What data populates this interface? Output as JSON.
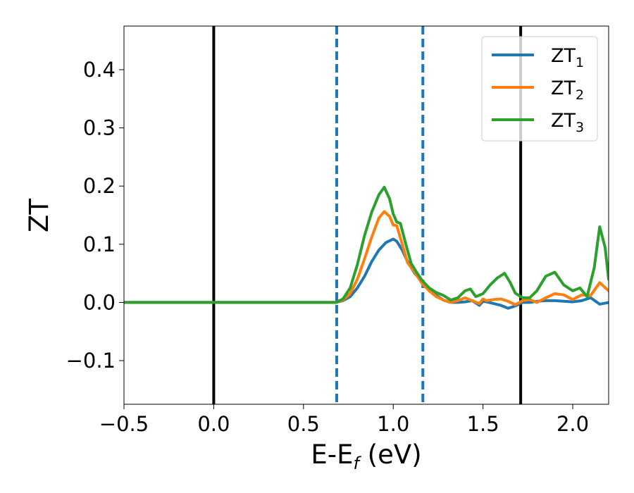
{
  "chart_data": {
    "type": "line",
    "xlabel_main": "E-E",
    "xlabel_sub": "f",
    "xlabel_unit": " (eV)",
    "ylabel": "ZT",
    "xlim": [
      -0.5,
      2.2
    ],
    "ylim": [
      -0.175,
      0.475
    ],
    "xticks": [
      -0.5,
      0.0,
      0.5,
      1.0,
      1.5,
      2.0
    ],
    "xtick_labels": [
      "−0.5",
      "0.0",
      "0.5",
      "1.0",
      "1.5",
      "2.0"
    ],
    "yticks": [
      -0.1,
      0.0,
      0.1,
      0.2,
      0.3,
      0.4
    ],
    "ytick_labels": [
      "−0.1",
      "0.0",
      "0.1",
      "0.2",
      "0.3",
      "0.4"
    ],
    "grid": false,
    "legend_position": "top-right",
    "vlines_solid": [
      0.0,
      1.71
    ],
    "vlines_dashed": [
      0.685,
      1.165
    ],
    "series": [
      {
        "name": "ZT",
        "subscript": "1",
        "color": "#1f77b4",
        "x": [
          -0.5,
          0.0,
          0.5,
          0.68,
          0.72,
          0.76,
          0.8,
          0.84,
          0.88,
          0.92,
          0.96,
          1.0,
          1.02,
          1.05,
          1.08,
          1.12,
          1.16,
          1.2,
          1.24,
          1.28,
          1.32,
          1.36,
          1.4,
          1.44,
          1.48,
          1.5,
          1.52,
          1.56,
          1.6,
          1.64,
          1.68,
          1.72,
          1.76,
          1.8,
          1.85,
          1.9,
          1.95,
          2.0,
          2.05,
          2.1,
          2.15,
          2.2
        ],
        "y": [
          0.0,
          0.0,
          0.0,
          0.0,
          0.003,
          0.01,
          0.025,
          0.045,
          0.07,
          0.09,
          0.103,
          0.109,
          0.105,
          0.09,
          0.07,
          0.05,
          0.036,
          0.024,
          0.012,
          0.004,
          0.0,
          0.0,
          0.001,
          0.003,
          -0.005,
          0.002,
          0.001,
          -0.002,
          -0.005,
          -0.01,
          -0.006,
          0.0,
          0.0,
          0.002,
          0.003,
          0.003,
          0.002,
          0.001,
          0.003,
          0.008,
          -0.003,
          0.0
        ]
      },
      {
        "name": "ZT",
        "subscript": "2",
        "color": "#ff7f0e",
        "x": [
          -0.5,
          0.0,
          0.5,
          0.68,
          0.72,
          0.76,
          0.8,
          0.84,
          0.88,
          0.92,
          0.95,
          0.98,
          1.0,
          1.02,
          1.05,
          1.08,
          1.12,
          1.16,
          1.2,
          1.24,
          1.28,
          1.32,
          1.36,
          1.4,
          1.44,
          1.48,
          1.5,
          1.52,
          1.56,
          1.6,
          1.64,
          1.68,
          1.72,
          1.76,
          1.8,
          1.85,
          1.9,
          1.95,
          2.0,
          2.05,
          2.1,
          2.15,
          2.2
        ],
        "y": [
          0.0,
          0.0,
          0.0,
          0.0,
          0.004,
          0.015,
          0.04,
          0.075,
          0.112,
          0.145,
          0.156,
          0.148,
          0.133,
          0.132,
          0.1,
          0.068,
          0.052,
          0.033,
          0.02,
          0.01,
          0.004,
          0.0,
          0.003,
          0.008,
          0.003,
          -0.002,
          0.006,
          0.003,
          0.005,
          0.006,
          0.002,
          -0.004,
          0.003,
          0.005,
          0.0,
          0.008,
          0.015,
          0.013,
          0.005,
          0.013,
          0.012,
          0.034,
          0.02
        ]
      },
      {
        "name": "ZT",
        "subscript": "3",
        "color": "#2ca02c",
        "x": [
          -0.5,
          0.0,
          0.5,
          0.68,
          0.72,
          0.76,
          0.8,
          0.84,
          0.88,
          0.92,
          0.95,
          0.98,
          1.0,
          1.02,
          1.04,
          1.07,
          1.1,
          1.13,
          1.16,
          1.2,
          1.24,
          1.28,
          1.32,
          1.36,
          1.4,
          1.43,
          1.46,
          1.5,
          1.54,
          1.58,
          1.62,
          1.65,
          1.68,
          1.72,
          1.76,
          1.8,
          1.85,
          1.9,
          1.95,
          2.0,
          2.04,
          2.08,
          2.12,
          2.15,
          2.18,
          2.2
        ],
        "y": [
          0.0,
          0.0,
          0.0,
          0.0,
          0.006,
          0.025,
          0.065,
          0.115,
          0.155,
          0.185,
          0.198,
          0.178,
          0.152,
          0.138,
          0.136,
          0.1,
          0.067,
          0.052,
          0.038,
          0.025,
          0.017,
          0.012,
          0.004,
          0.008,
          0.02,
          0.023,
          0.01,
          0.015,
          0.03,
          0.042,
          0.05,
          0.035,
          0.016,
          0.008,
          0.008,
          0.02,
          0.045,
          0.052,
          0.03,
          0.02,
          0.025,
          0.01,
          0.06,
          0.13,
          0.095,
          0.04
        ]
      }
    ]
  }
}
